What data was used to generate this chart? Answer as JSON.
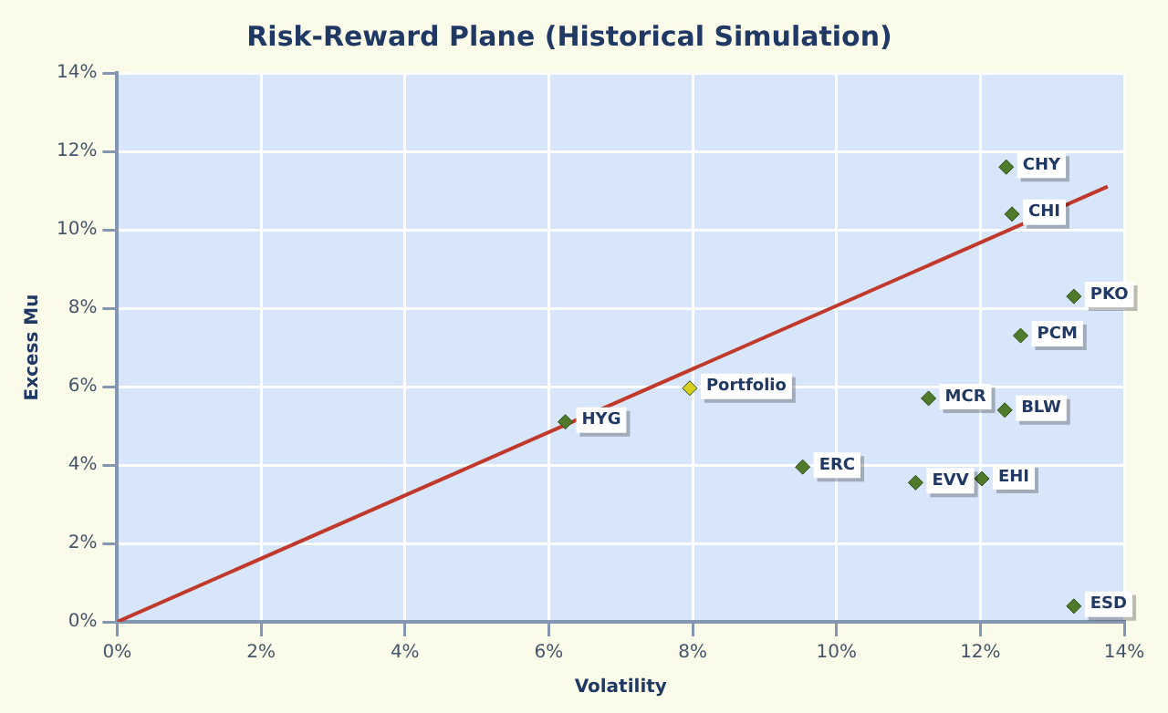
{
  "chart_data": {
    "type": "scatter",
    "title": "Risk-Reward Plane (Historical Simulation)",
    "xlabel": "Volatility",
    "ylabel": "Excess Mu",
    "series": [
      {
        "color": "#4e7a2a",
        "x": [
          12.36,
          12.44,
          13.3,
          12.56,
          6.23,
          11.28,
          12.34,
          9.53,
          11.1,
          12.02,
          13.3
        ],
        "values": [
          11.6,
          10.4,
          8.3,
          7.3,
          5.1,
          5.7,
          5.4,
          3.95,
          3.55,
          3.65,
          0.4
        ]
      },
      {
        "color": "#d8d020",
        "x": [
          7.96
        ],
        "values": [
          5.96
        ]
      },
      {
        "type": "line",
        "color": "#c0392b",
        "x": [
          0,
          13.77
        ],
        "values": [
          0,
          11.1
        ],
        "marker": "none"
      }
    ],
    "annotations": [
      {
        "text": "CHY",
        "x": 12.36,
        "y": 11.6
      },
      {
        "text": "CHI",
        "x": 12.44,
        "y": 10.4
      },
      {
        "text": "PKO",
        "x": 13.3,
        "y": 8.3
      },
      {
        "text": "PCM",
        "x": 12.56,
        "y": 7.3
      },
      {
        "text": "HYG",
        "x": 6.23,
        "y": 5.1
      },
      {
        "text": "MCR",
        "x": 11.28,
        "y": 5.7
      },
      {
        "text": "BLW",
        "x": 12.34,
        "y": 5.4
      },
      {
        "text": "ERC",
        "x": 9.53,
        "y": 3.95
      },
      {
        "text": "EVV",
        "x": 11.1,
        "y": 3.55
      },
      {
        "text": "EHI",
        "x": 12.02,
        "y": 3.65
      },
      {
        "text": "ESD",
        "x": 13.3,
        "y": 0.4
      },
      {
        "text": "Portfolio",
        "x": 7.96,
        "y": 5.96
      }
    ],
    "xlim": [
      0,
      14
    ],
    "ylim": [
      0,
      14
    ],
    "xticks": [
      {
        "value": 0,
        "label": "0%"
      },
      {
        "value": 2,
        "label": "2%"
      },
      {
        "value": 4,
        "label": "4%"
      },
      {
        "value": 6,
        "label": "6%"
      },
      {
        "value": 8,
        "label": "8%"
      },
      {
        "value": 10,
        "label": "10%"
      },
      {
        "value": 12,
        "label": "12%"
      },
      {
        "value": 14,
        "label": "14%"
      }
    ],
    "yticks": [
      {
        "value": 0,
        "label": "0%"
      },
      {
        "value": 2,
        "label": "2%"
      },
      {
        "value": 4,
        "label": "4%"
      },
      {
        "value": 6,
        "label": "6%"
      },
      {
        "value": 8,
        "label": "8%"
      },
      {
        "value": 10,
        "label": "10%"
      },
      {
        "value": 12,
        "label": "12%"
      },
      {
        "value": 14,
        "label": "14%"
      }
    ],
    "grid": true,
    "legend": false,
    "marker": "diamond"
  }
}
